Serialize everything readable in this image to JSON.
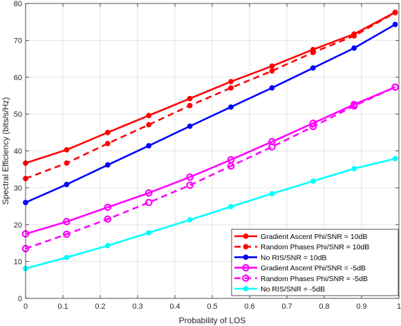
{
  "chart_data": {
    "type": "line",
    "xlabel": "Probability of LOS",
    "ylabel": "Spectral Efficiency (bits/s/Hz)",
    "xlim": [
      0,
      1
    ],
    "ylim": [
      0,
      80
    ],
    "xticks": [
      0,
      0.1,
      0.2,
      0.3,
      0.4,
      0.5,
      0.6,
      0.7,
      0.8,
      0.9,
      1
    ],
    "yticks": [
      0,
      10,
      20,
      30,
      40,
      50,
      60,
      70,
      80
    ],
    "grid": true,
    "legend_position": "bottom-right",
    "x": [
      0,
      0.11,
      0.22,
      0.33,
      0.44,
      0.55,
      0.66,
      0.77,
      0.88,
      0.99
    ],
    "series": [
      {
        "name": "Gradient Ascent Phi/SNR = 10dB",
        "color": "#ff0000",
        "dash": "solid",
        "marker": "filled-circle",
        "values": [
          36.7,
          40.3,
          45.0,
          49.6,
          54.2,
          58.8,
          63.0,
          67.5,
          71.7,
          77.6
        ]
      },
      {
        "name": "Random Phases Phi/SNR = 10dB",
        "color": "#ff0000",
        "dash": "dashed",
        "marker": "filled-circle",
        "values": [
          32.5,
          36.7,
          42.0,
          47.1,
          52.3,
          57.1,
          61.7,
          66.7,
          71.2,
          77.5
        ]
      },
      {
        "name": "No RIS/SNR = 10dB",
        "color": "#0000ff",
        "dash": "solid",
        "marker": "filled-circle",
        "values": [
          26.0,
          30.9,
          36.2,
          41.4,
          46.7,
          51.9,
          57.1,
          62.5,
          67.9,
          74.3
        ]
      },
      {
        "name": "Gradient Ascent Phi/SNR = -5dB",
        "color": "#ff00ff",
        "dash": "solid",
        "marker": "open-circle",
        "values": [
          17.5,
          20.8,
          24.7,
          28.6,
          32.9,
          37.6,
          42.5,
          47.5,
          52.6,
          57.3
        ]
      },
      {
        "name": "Random Phases Phi/SNR = -5dB",
        "color": "#ff00ff",
        "dash": "dashed",
        "marker": "open-circle",
        "values": [
          13.5,
          17.4,
          21.5,
          26.0,
          30.7,
          35.9,
          41.1,
          46.6,
          52.2,
          57.3
        ]
      },
      {
        "name": "No RIS/SNR = -5dB",
        "color": "#00ffff",
        "dash": "solid",
        "marker": "filled-circle",
        "values": [
          8.1,
          11.1,
          14.3,
          17.8,
          21.3,
          24.9,
          28.4,
          31.8,
          35.2,
          37.9
        ]
      }
    ]
  }
}
